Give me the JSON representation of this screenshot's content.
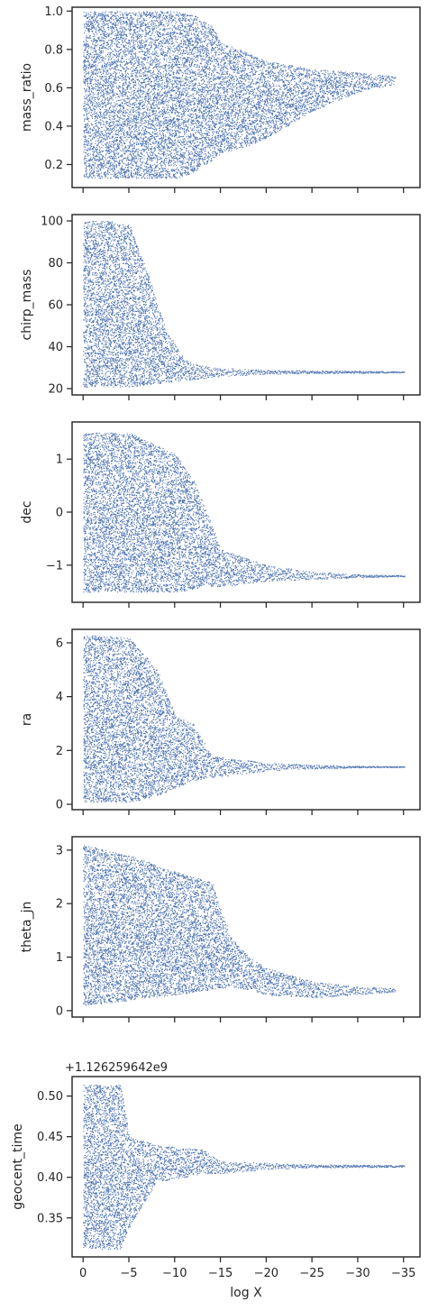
{
  "chart_data": {
    "type": "scatter",
    "shared_x": {
      "label": "log X",
      "ticks": [
        0,
        -5,
        -10,
        -15,
        -20,
        -25,
        -30,
        -35
      ],
      "tick_labels": [
        "0",
        "−5",
        "−10",
        "−15",
        "−20",
        "−25",
        "−30",
        "−35"
      ],
      "range": [
        1.2,
        -36.8
      ]
    },
    "color": "#4c72b0",
    "panels": [
      {
        "ylabel": "mass_ratio",
        "ylim": [
          0.08,
          1.02
        ],
        "ticks": [
          0.2,
          0.4,
          0.6,
          0.8,
          1.0
        ],
        "tick_labels": [
          "0.2",
          "0.4",
          "0.6",
          "0.8",
          "1.0"
        ],
        "offset_text": "",
        "envelope": [
          {
            "x": 0,
            "lo": 0.13,
            "hi": 1.0
          },
          {
            "x": -5,
            "lo": 0.13,
            "hi": 1.0
          },
          {
            "x": -10,
            "lo": 0.13,
            "hi": 1.0
          },
          {
            "x": -12,
            "lo": 0.16,
            "hi": 0.98
          },
          {
            "x": -14,
            "lo": 0.22,
            "hi": 0.92
          },
          {
            "x": -15,
            "lo": 0.26,
            "hi": 0.84
          },
          {
            "x": -18,
            "lo": 0.3,
            "hi": 0.78
          },
          {
            "x": -20,
            "lo": 0.34,
            "hi": 0.74
          },
          {
            "x": -25,
            "lo": 0.48,
            "hi": 0.7
          },
          {
            "x": -30,
            "lo": 0.58,
            "hi": 0.68
          },
          {
            "x": -34,
            "lo": 0.62,
            "hi": 0.66
          }
        ]
      },
      {
        "ylabel": "chirp_mass",
        "ylim": [
          17,
          103
        ],
        "ticks": [
          20,
          40,
          60,
          80,
          100
        ],
        "tick_labels": [
          "20",
          "40",
          "60",
          "80",
          "100"
        ],
        "offset_text": "",
        "envelope": [
          {
            "x": 0,
            "lo": 21,
            "hi": 100
          },
          {
            "x": -3,
            "lo": 21,
            "hi": 100
          },
          {
            "x": -5,
            "lo": 21,
            "hi": 98
          },
          {
            "x": -7,
            "lo": 22,
            "hi": 75
          },
          {
            "x": -9,
            "lo": 23,
            "hi": 48
          },
          {
            "x": -11,
            "lo": 24,
            "hi": 34
          },
          {
            "x": -13,
            "lo": 25,
            "hi": 31
          },
          {
            "x": -15,
            "lo": 26,
            "hi": 30
          },
          {
            "x": -20,
            "lo": 27,
            "hi": 29
          },
          {
            "x": -30,
            "lo": 27.5,
            "hi": 28.5
          },
          {
            "x": -35,
            "lo": 27.8,
            "hi": 28.2
          }
        ]
      },
      {
        "ylabel": "dec",
        "ylim": [
          -1.7,
          1.7
        ],
        "ticks": [
          -1,
          0,
          1
        ],
        "tick_labels": [
          "−1",
          "0",
          "1"
        ],
        "offset_text": "",
        "envelope": [
          {
            "x": 0,
            "lo": -1.5,
            "hi": 1.5
          },
          {
            "x": -5,
            "lo": -1.5,
            "hi": 1.5
          },
          {
            "x": -10,
            "lo": -1.5,
            "hi": 1.1
          },
          {
            "x": -12,
            "lo": -1.45,
            "hi": 0.6
          },
          {
            "x": -13,
            "lo": -1.4,
            "hi": 0.2
          },
          {
            "x": -15,
            "lo": -1.4,
            "hi": -0.7
          },
          {
            "x": -20,
            "lo": -1.3,
            "hi": -1.0
          },
          {
            "x": -25,
            "lo": -1.26,
            "hi": -1.12
          },
          {
            "x": -30,
            "lo": -1.23,
            "hi": -1.17
          },
          {
            "x": -35,
            "lo": -1.21,
            "hi": -1.19
          }
        ]
      },
      {
        "ylabel": "ra",
        "ylim": [
          -0.2,
          6.5
        ],
        "ticks": [
          0,
          2,
          4,
          6
        ],
        "tick_labels": [
          "0",
          "2",
          "4",
          "6"
        ],
        "offset_text": "",
        "envelope": [
          {
            "x": 0,
            "lo": 0.1,
            "hi": 6.3
          },
          {
            "x": -5,
            "lo": 0.1,
            "hi": 6.2
          },
          {
            "x": -8,
            "lo": 0.3,
            "hi": 5.0
          },
          {
            "x": -10,
            "lo": 0.6,
            "hi": 3.3
          },
          {
            "x": -12,
            "lo": 0.9,
            "hi": 3.0
          },
          {
            "x": -14,
            "lo": 1.0,
            "hi": 1.8
          },
          {
            "x": -20,
            "lo": 1.25,
            "hi": 1.55
          },
          {
            "x": -25,
            "lo": 1.33,
            "hi": 1.47
          },
          {
            "x": -30,
            "lo": 1.37,
            "hi": 1.43
          },
          {
            "x": -35,
            "lo": 1.39,
            "hi": 1.41
          }
        ]
      },
      {
        "ylabel": "theta_jn",
        "ylim": [
          -0.12,
          3.25
        ],
        "ticks": [
          0,
          1,
          2,
          3
        ],
        "tick_labels": [
          "0",
          "1",
          "2",
          "3"
        ],
        "offset_text": "",
        "envelope": [
          {
            "x": 0,
            "lo": 0.1,
            "hi": 3.1
          },
          {
            "x": -5,
            "lo": 0.2,
            "hi": 2.9
          },
          {
            "x": -10,
            "lo": 0.3,
            "hi": 2.6
          },
          {
            "x": -14,
            "lo": 0.4,
            "hi": 2.4
          },
          {
            "x": -16,
            "lo": 0.45,
            "hi": 1.4
          },
          {
            "x": -18,
            "lo": 0.4,
            "hi": 1.0
          },
          {
            "x": -20,
            "lo": 0.3,
            "hi": 0.8
          },
          {
            "x": -25,
            "lo": 0.25,
            "hi": 0.55
          },
          {
            "x": -30,
            "lo": 0.3,
            "hi": 0.45
          },
          {
            "x": -34,
            "lo": 0.36,
            "hi": 0.42
          }
        ]
      },
      {
        "ylabel": "geocent_time",
        "ylim": [
          0.302,
          0.524
        ],
        "ticks": [
          0.35,
          0.4,
          0.45,
          0.5
        ],
        "tick_labels": [
          "0.35",
          "0.40",
          "0.45",
          "0.50"
        ],
        "offset_text": "+1.126259642e9",
        "envelope": [
          {
            "x": 0,
            "lo": 0.312,
            "hi": 0.514
          },
          {
            "x": -4,
            "lo": 0.312,
            "hi": 0.514
          },
          {
            "x": -5,
            "lo": 0.34,
            "hi": 0.45
          },
          {
            "x": -8,
            "lo": 0.395,
            "hi": 0.44
          },
          {
            "x": -11,
            "lo": 0.4,
            "hi": 0.436
          },
          {
            "x": -13,
            "lo": 0.405,
            "hi": 0.435
          },
          {
            "x": -15,
            "lo": 0.405,
            "hi": 0.42
          },
          {
            "x": -20,
            "lo": 0.41,
            "hi": 0.418
          },
          {
            "x": -25,
            "lo": 0.412,
            "hi": 0.416
          },
          {
            "x": -35,
            "lo": 0.413,
            "hi": 0.415
          }
        ]
      }
    ]
  }
}
